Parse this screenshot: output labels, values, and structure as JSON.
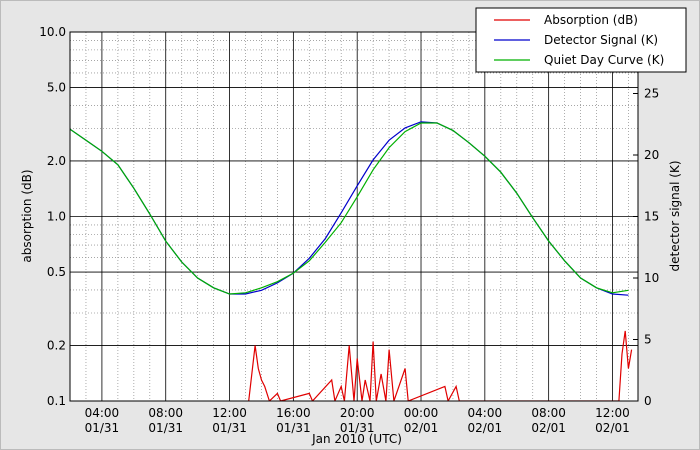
{
  "chart_data": {
    "type": "line",
    "xlabel": "Jan 2010 (UTC)",
    "ylabel": "absorption (dB)",
    "y2label": "detector signal (K)",
    "yscale": "log",
    "grid": true,
    "legend": "upper right",
    "x": [
      2,
      3,
      4,
      5,
      6,
      7,
      8,
      9,
      10,
      11,
      12,
      13,
      14,
      15,
      16,
      17,
      18,
      19,
      20,
      21,
      22,
      23,
      24,
      25,
      26,
      27,
      28,
      29,
      30,
      31,
      32,
      33,
      34,
      35,
      36,
      37
    ],
    "xlim": [
      2,
      37.6
    ],
    "xticks": [
      {
        "value": 4,
        "label": [
          "04:00",
          "01/31"
        ]
      },
      {
        "value": 8,
        "label": [
          "08:00",
          "01/31"
        ]
      },
      {
        "value": 12,
        "label": [
          "12:00",
          "01/31"
        ]
      },
      {
        "value": 16,
        "label": [
          "16:00",
          "01/31"
        ]
      },
      {
        "value": 20,
        "label": [
          "20:00",
          "01/31"
        ]
      },
      {
        "value": 24,
        "label": [
          "00:00",
          "02/01"
        ]
      },
      {
        "value": 28,
        "label": [
          "04:00",
          "02/01"
        ]
      },
      {
        "value": 32,
        "label": [
          "08:00",
          "02/01"
        ]
      },
      {
        "value": 36,
        "label": [
          "12:00",
          "02/01"
        ]
      }
    ],
    "x_minor_ticks": [
      3,
      5,
      6,
      7,
      9,
      10,
      11,
      13,
      14,
      15,
      17,
      18,
      19,
      21,
      22,
      23,
      25,
      26,
      27,
      29,
      30,
      31,
      33,
      34,
      35,
      37
    ],
    "ylim": [
      0.1,
      10
    ],
    "yticks": [
      0.1,
      0.2,
      0.5,
      {
        "value": 1,
        "label": "1.0"
      },
      {
        "value": 2,
        "label": "2.0"
      },
      {
        "value": 5,
        "label": "5.0"
      },
      {
        "value": 10,
        "label": "10.0"
      }
    ],
    "y_minor_ticks": [
      0.3,
      0.4,
      0.6,
      0.7,
      0.8,
      0.9,
      3,
      4,
      6,
      7,
      8,
      9
    ],
    "y2lim": [
      0,
      30
    ],
    "y2ticks": [
      0,
      5,
      10,
      15,
      20,
      25
    ],
    "series": [
      {
        "name": "Absorption (dB)",
        "color": "#e00000",
        "x": [
          13.2,
          13.6,
          13.8,
          14.0,
          14.2,
          14.5,
          15.0,
          15.2,
          17.0,
          17.2,
          18.4,
          18.6,
          19.0,
          19.2,
          19.5,
          19.8,
          20.0,
          20.3,
          20.5,
          20.8,
          21.0,
          21.2,
          21.5,
          21.8,
          22.0,
          22.3,
          23.0,
          23.2,
          25.5,
          25.7,
          26.2,
          26.4,
          36.4,
          36.6,
          36.8,
          37.0,
          37.2
        ],
        "values": [
          0.1,
          0.2,
          0.15,
          0.13,
          0.12,
          0.1,
          0.11,
          0.1,
          0.11,
          0.1,
          0.13,
          0.1,
          0.12,
          0.1,
          0.2,
          0.1,
          0.17,
          0.1,
          0.13,
          0.1,
          0.21,
          0.1,
          0.14,
          0.1,
          0.19,
          0.1,
          0.15,
          0.1,
          0.12,
          0.1,
          0.12,
          0.1,
          0.1,
          0.18,
          0.24,
          0.15,
          0.19
        ]
      },
      {
        "name": "Detector Signal (K)",
        "color": "#0000cc",
        "axis": "y2",
        "values": [
          22.1,
          21.2,
          20.3,
          19.2,
          17.3,
          15.2,
          13.0,
          11.3,
          10.0,
          9.2,
          8.7,
          8.7,
          9.0,
          9.6,
          10.4,
          11.6,
          13.2,
          15.3,
          17.5,
          19.6,
          21.2,
          22.2,
          22.7,
          22.6,
          22.0,
          21.0,
          19.9,
          18.6,
          16.9,
          14.9,
          13.0,
          11.4,
          10.0,
          9.2,
          8.7,
          8.6
        ]
      },
      {
        "name": "Quiet Day Curve (K)",
        "color": "#00b000",
        "axis": "y2",
        "values": [
          22.1,
          21.2,
          20.3,
          19.2,
          17.3,
          15.2,
          13.0,
          11.3,
          10.0,
          9.2,
          8.7,
          8.8,
          9.2,
          9.7,
          10.4,
          11.4,
          12.9,
          14.5,
          16.6,
          18.8,
          20.6,
          21.9,
          22.6,
          22.6,
          22.0,
          21.0,
          19.9,
          18.6,
          16.9,
          14.9,
          13.0,
          11.4,
          10.0,
          9.2,
          8.8,
          9.0
        ]
      }
    ]
  }
}
